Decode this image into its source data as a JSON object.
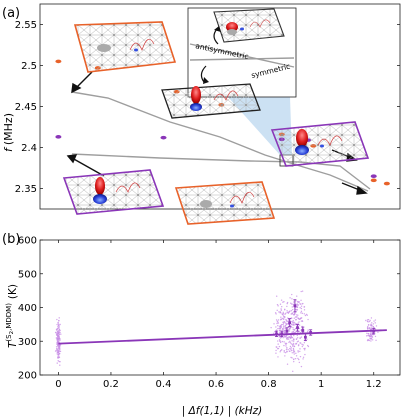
{
  "figure": {
    "panel_a_label": "(a)",
    "panel_b_label": "(b)"
  },
  "panel_a": {
    "ylabel_main": "f",
    "ylabel_unit": "(MHz)",
    "annotations": {
      "antisymmetric": "antisymmetric",
      "symmetric": "symmetric"
    }
  },
  "panel_b": {
    "ylabel_main": "T",
    "ylabel_sup": "(S",
    "ylabel_sub": "2",
    "ylabel_sup2": ",MDDM)",
    "ylabel_unit": "(K)",
    "xlabel": "| Δf(1,1) | (kHz)"
  },
  "colors": {
    "orange": "#e8622a",
    "purple": "#8a36b8",
    "light_purple": "#c88ee6",
    "grey_line": "#9e9e9e",
    "inset_blue": "#c6def2"
  },
  "chart_data": [
    {
      "type": "scatter",
      "panel": "a",
      "ylabel": "f (MHz)",
      "ylim": [
        2.325,
        2.575
      ],
      "yticks": [
        2.35,
        2.4,
        2.45,
        2.5,
        2.55
      ],
      "series": [
        {
          "name": "",
          "color": "orange",
          "x": [
            0.0,
            0.15,
            0.45,
            0.62,
            0.85,
            0.97,
            1.2,
            1.25
          ],
          "y": [
            2.505,
            2.497,
            2.468,
            2.452,
            2.416,
            2.402,
            2.36,
            2.356
          ]
        },
        {
          "name": "",
          "color": "purple",
          "x": [
            0.0,
            0.4,
            0.85,
            0.95,
            1.2
          ],
          "y": [
            2.413,
            2.412,
            2.41,
            2.409,
            2.365
          ]
        }
      ],
      "ytick_labels": [
        "2.35",
        "2.4",
        "2.45",
        "2.5",
        "2.55"
      ]
    },
    {
      "type": "scatter",
      "panel": "b",
      "xlabel": "| Δf(1,1) | (kHz)",
      "ylabel": "T^(S2,MDDM) (K)",
      "xlim": [
        -0.07,
        1.3
      ],
      "ylim": [
        200,
        600
      ],
      "xticks": [
        0,
        0.2,
        0.4,
        0.6,
        0.8,
        1,
        1.2
      ],
      "yticks": [
        200,
        300,
        400,
        500,
        600
      ],
      "xtick_labels": [
        "0",
        "0.2",
        "0.4",
        "0.6",
        "0.8",
        "1",
        "1.2"
      ],
      "ytick_labels": [
        "200",
        "300",
        "400",
        "500",
        "600"
      ],
      "fit": {
        "x": [
          0,
          1.25
        ],
        "y": [
          293,
          333
        ]
      },
      "errorbar_points": [
        {
          "x": 0.83,
          "y": 322,
          "err": 8
        },
        {
          "x": 0.85,
          "y": 322,
          "err": 8
        },
        {
          "x": 0.87,
          "y": 330,
          "err": 10
        },
        {
          "x": 0.88,
          "y": 355,
          "err": 12
        },
        {
          "x": 0.9,
          "y": 405,
          "err": 18
        },
        {
          "x": 0.91,
          "y": 340,
          "err": 10
        },
        {
          "x": 0.93,
          "y": 332,
          "err": 10
        },
        {
          "x": 0.94,
          "y": 312,
          "err": 10
        },
        {
          "x": 0.96,
          "y": 326,
          "err": 8
        },
        {
          "x": 1.2,
          "y": 330,
          "err": 8
        }
      ]
    }
  ]
}
